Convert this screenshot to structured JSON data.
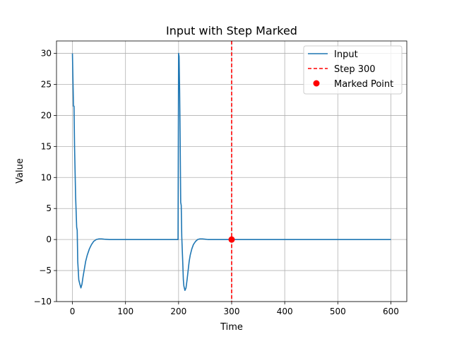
{
  "chart_data": {
    "type": "line",
    "title": "Input with Step Marked",
    "xlabel": "Time",
    "ylabel": "Value",
    "xlim": [
      -30,
      630
    ],
    "ylim": [
      -10,
      32
    ],
    "xticks": [
      0,
      100,
      200,
      300,
      400,
      500,
      600
    ],
    "yticks": [
      -10,
      -5,
      0,
      5,
      10,
      15,
      20,
      25,
      30
    ],
    "grid": true,
    "legend_position": "top-right",
    "series": [
      {
        "name": "Input",
        "kind": "line",
        "color": "#1f77b4",
        "x": [
          0,
          2,
          3,
          4,
          6,
          8,
          9,
          10,
          12,
          14,
          16,
          18,
          20,
          22,
          25,
          28,
          32,
          36,
          40,
          45,
          50,
          55,
          60,
          70,
          80,
          100,
          150,
          199,
          200,
          201,
          202,
          203,
          204,
          205,
          206,
          208,
          209,
          210,
          212,
          214,
          216,
          218,
          220,
          222,
          225,
          228,
          232,
          236,
          240,
          245,
          250,
          255,
          260,
          270,
          300,
          400,
          500,
          600
        ],
        "y": [
          30,
          21.5,
          21.5,
          15,
          7,
          2,
          1.5,
          -3.5,
          -6.5,
          -7.2,
          -7.8,
          -7.2,
          -6,
          -5,
          -3.5,
          -2.5,
          -1.5,
          -0.8,
          -0.3,
          0,
          0.1,
          0.1,
          0.05,
          0,
          0,
          0,
          0,
          0,
          30,
          29.5,
          24,
          16,
          6,
          5.5,
          0.5,
          -4,
          -6.5,
          -7.5,
          -8.2,
          -7.8,
          -6.5,
          -5,
          -3.5,
          -2.5,
          -1.5,
          -0.8,
          -0.3,
          0,
          0.1,
          0.1,
          0.05,
          0,
          0,
          0,
          0,
          0,
          0,
          0
        ]
      },
      {
        "name": "Step 300",
        "kind": "vline",
        "color": "#ff0000",
        "x": 300
      },
      {
        "name": "Marked Point",
        "kind": "scatter",
        "color": "#ff0000",
        "x": [
          300
        ],
        "y": [
          0
        ]
      }
    ]
  }
}
